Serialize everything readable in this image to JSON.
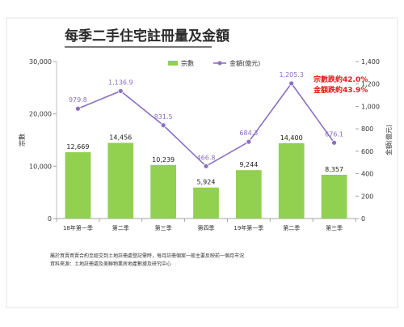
{
  "chart_data": {
    "type": "bar",
    "title": "每季二手住宅註冊量及金額",
    "categories": [
      "18年第一季",
      "第二季",
      "第三季",
      "第四季",
      "19年第一季",
      "第二季",
      "第三季"
    ],
    "series": [
      {
        "name": "宗數",
        "type": "bar",
        "axis": "left",
        "color": "#92d050",
        "values": [
          12669,
          14456,
          10239,
          5924,
          9244,
          14400,
          8357
        ],
        "labels": [
          "12,669",
          "14,456",
          "10,239",
          "5,924",
          "9,244",
          "14,400",
          "8,357"
        ]
      },
      {
        "name": "金額(億元)",
        "type": "line",
        "axis": "right",
        "color": "#8a6fc2",
        "values": [
          979.8,
          1136.9,
          831.5,
          466.8,
          684.3,
          1205.3,
          676.1
        ],
        "labels": [
          "979.8",
          "1,136.9",
          "831.5",
          "466.8",
          "684.3",
          "1,205.3",
          "676.1"
        ]
      }
    ],
    "y_left": {
      "label": "宗數",
      "range": [
        0,
        30000
      ],
      "ticks": [
        0,
        10000,
        20000,
        30000
      ],
      "tick_labels": [
        "0",
        "10,000",
        "20,000",
        "30,000"
      ]
    },
    "y_right": {
      "label": "金額(億元)",
      "range": [
        0,
        1400
      ],
      "ticks": [
        0,
        200,
        400,
        600,
        800,
        1000,
        1200,
        1400
      ],
      "tick_labels": [
        "0",
        "200",
        "400",
        "600",
        "800",
        "1,000",
        "1,200",
        "1,400"
      ]
    },
    "legend_position": "top",
    "annotations": [
      "宗數跌約42.0%",
      "金額跌約43.9%"
    ],
    "annotation_color": "#e8161b",
    "footnotes": [
      "屬於買賣買賣合約至經交到土地註冊處登記需時，每月註冊個案一般主要反映前一個月市況",
      "資料來源：土地註冊處及美聯物業房地產數據及研究中心"
    ]
  }
}
